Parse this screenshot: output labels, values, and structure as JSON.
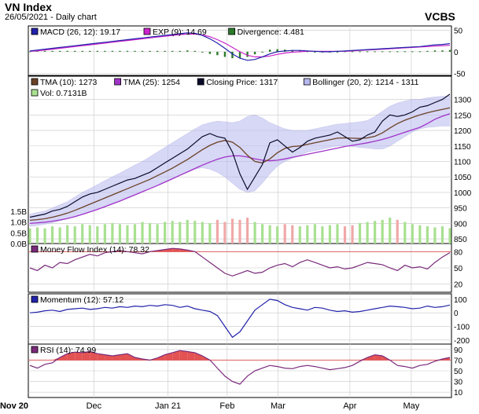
{
  "header": {
    "title": "VN Index",
    "subtitle": "26/05/2021 - Daily chart",
    "brand": "VCBS"
  },
  "colors": {
    "panel_bg": "#ffffff",
    "plot_bg": "#ffffff",
    "grid": "#c8c8c8",
    "macd": "#2222aa",
    "exp": "#cc22cc",
    "divergence": "#2a7a2a",
    "tma10": "#6b4226",
    "tma25": "#a033c8",
    "close": "#0a0a2a",
    "bollinger": "#b8b8f0",
    "vol_up": "#a8e090",
    "vol_down": "#f0a8a8",
    "mfi": "#7a2a7a",
    "momentum": "#2222aa",
    "rsi": "#7a2a7a",
    "overbought_fill": "#e04040",
    "threshold": "#e06060"
  },
  "x_axis": {
    "labels": [
      "Nov 20",
      "Dec",
      "Jan 21",
      "Feb",
      "Mar",
      "Apr",
      "May"
    ]
  },
  "chart_data": [
    {
      "type": "line",
      "panel": "macd",
      "legend": [
        {
          "label": "MACD (26, 12): 19.17",
          "color": "#2222aa"
        },
        {
          "label": "EXP (9): 14.69",
          "color": "#cc22cc"
        },
        {
          "label": "Divergence: 4.481",
          "color": "#2a7a2a"
        }
      ],
      "yticks": [
        50,
        0,
        -50
      ],
      "ylim": [
        -55,
        60
      ],
      "series": [
        {
          "name": "MACD (26, 12)",
          "values": [
            2,
            4,
            6,
            8,
            10,
            12,
            14,
            16,
            18,
            20,
            22,
            24,
            26,
            28,
            30,
            32,
            34,
            36,
            38,
            40,
            42,
            44,
            43,
            38,
            30,
            20,
            8,
            -5,
            -15,
            -20,
            -18,
            -12,
            -5,
            0,
            2,
            3,
            3,
            2,
            1,
            0,
            0,
            1,
            2,
            3,
            4,
            5,
            6,
            7,
            8,
            9,
            10,
            11,
            12,
            14,
            16,
            17,
            19
          ]
        },
        {
          "name": "EXP (9)",
          "values": [
            1,
            2,
            4,
            6,
            8,
            10,
            12,
            14,
            16,
            18,
            20,
            22,
            24,
            26,
            28,
            30,
            32,
            34,
            36,
            38,
            40,
            41,
            41,
            39,
            35,
            28,
            20,
            10,
            0,
            -8,
            -12,
            -12,
            -10,
            -6,
            -3,
            -1,
            0,
            1,
            1,
            1,
            1,
            1,
            1,
            2,
            3,
            4,
            5,
            6,
            7,
            8,
            9,
            10,
            11,
            12,
            13,
            14,
            15
          ]
        },
        {
          "name": "Divergence",
          "values": [
            1,
            2,
            2,
            2,
            2,
            2,
            2,
            2,
            2,
            2,
            2,
            2,
            2,
            2,
            2,
            2,
            2,
            2,
            2,
            2,
            2,
            3,
            2,
            -1,
            -5,
            -8,
            -12,
            -15,
            -15,
            -12,
            -6,
            0,
            5,
            6,
            5,
            4,
            3,
            1,
            0,
            -1,
            -1,
            0,
            1,
            1,
            1,
            1,
            1,
            1,
            1,
            1,
            1,
            1,
            1,
            2,
            3,
            3,
            4
          ]
        }
      ]
    },
    {
      "type": "line",
      "panel": "price",
      "legend": [
        {
          "label": "TMA (10): 1273",
          "color": "#6b4226"
        },
        {
          "label": "TMA (25): 1254",
          "color": "#a033c8"
        },
        {
          "label": "Closing Price: 1317",
          "color": "#0a0a2a"
        },
        {
          "label": "Bollinger (20, 2): 1214 - 1311",
          "color": "#b8b8f0"
        },
        {
          "label": "Vol: 0.7131B",
          "color": "#a8e090"
        }
      ],
      "yticks": [
        1300,
        1250,
        1200,
        1150,
        1100,
        1050,
        1000,
        950,
        900,
        850
      ],
      "ylim": [
        835,
        1375
      ],
      "vol_ticks": [
        "1.5B",
        "1.0B",
        "0.5B",
        "0.0B"
      ],
      "vol_ylim": [
        0,
        1.75
      ],
      "series": [
        {
          "name": "Closing Price",
          "values": [
            920,
            925,
            930,
            940,
            945,
            955,
            970,
            985,
            995,
            1000,
            1010,
            1020,
            1030,
            1040,
            1045,
            1055,
            1065,
            1080,
            1095,
            1110,
            1125,
            1140,
            1160,
            1180,
            1190,
            1180,
            1175,
            1130,
            1060,
            1010,
            1050,
            1090,
            1160,
            1170,
            1150,
            1130,
            1145,
            1165,
            1175,
            1180,
            1185,
            1195,
            1180,
            1165,
            1170,
            1185,
            1195,
            1230,
            1250,
            1245,
            1250,
            1260,
            1275,
            1280,
            1290,
            1300,
            1317
          ]
        },
        {
          "name": "TMA (10)",
          "values": [
            910,
            912,
            915,
            920,
            926,
            933,
            942,
            952,
            962,
            972,
            982,
            992,
            1002,
            1012,
            1022,
            1032,
            1042,
            1054,
            1066,
            1078,
            1092,
            1106,
            1122,
            1138,
            1152,
            1162,
            1168,
            1162,
            1145,
            1120,
            1100,
            1095,
            1108,
            1128,
            1142,
            1148,
            1150,
            1155,
            1160,
            1165,
            1170,
            1175,
            1176,
            1175,
            1174,
            1176,
            1181,
            1192,
            1208,
            1222,
            1233,
            1242,
            1250,
            1257,
            1263,
            1268,
            1273
          ]
        },
        {
          "name": "TMA (25)",
          "values": [
            900,
            902,
            904,
            907,
            911,
            916,
            922,
            929,
            937,
            945,
            954,
            963,
            972,
            982,
            992,
            1002,
            1012,
            1022,
            1033,
            1044,
            1055,
            1066,
            1077,
            1088,
            1098,
            1107,
            1114,
            1118,
            1118,
            1114,
            1108,
            1104,
            1102,
            1104,
            1108,
            1113,
            1118,
            1123,
            1128,
            1133,
            1138,
            1143,
            1148,
            1152,
            1156,
            1160,
            1165,
            1171,
            1178,
            1186,
            1194,
            1202,
            1210,
            1222,
            1236,
            1246,
            1254
          ]
        },
        {
          "name": "Bollinger upper",
          "values": [
            930,
            935,
            940,
            950,
            960,
            970,
            985,
            1000,
            1012,
            1025,
            1038,
            1050,
            1062,
            1075,
            1088,
            1100,
            1115,
            1130,
            1145,
            1160,
            1175,
            1190,
            1205,
            1218,
            1225,
            1230,
            1228,
            1225,
            1230,
            1245,
            1250,
            1240,
            1225,
            1215,
            1205,
            1200,
            1200,
            1200,
            1205,
            1210,
            1215,
            1220,
            1222,
            1225,
            1228,
            1232,
            1245,
            1262,
            1278,
            1288,
            1295,
            1300,
            1300,
            1305,
            1308,
            1310,
            1311
          ]
        },
        {
          "name": "Bollinger lower",
          "values": [
            890,
            893,
            897,
            902,
            908,
            915,
            922,
            930,
            938,
            946,
            955,
            965,
            975,
            985,
            995,
            1005,
            1015,
            1025,
            1035,
            1045,
            1055,
            1065,
            1075,
            1080,
            1075,
            1065,
            1050,
            1030,
            1010,
            1000,
            1005,
            1030,
            1060,
            1085,
            1100,
            1110,
            1120,
            1130,
            1135,
            1140,
            1145,
            1150,
            1150,
            1148,
            1145,
            1143,
            1140,
            1140,
            1150,
            1165,
            1180,
            1195,
            1205,
            1210,
            1212,
            1214,
            1214
          ]
        },
        {
          "name": "Vol",
          "values": [
            0.7,
            0.75,
            0.7,
            0.8,
            0.75,
            0.85,
            0.8,
            0.9,
            0.85,
            0.8,
            0.9,
            0.95,
            0.9,
            0.85,
            0.9,
            1.0,
            0.95,
            0.9,
            1.0,
            1.05,
            1.0,
            1.1,
            1.05,
            1.0,
            0.95,
            1.1,
            1.0,
            1.15,
            1.1,
            1.2,
            1.0,
            0.9,
            0.85,
            0.8,
            0.9,
            0.85,
            0.8,
            0.85,
            0.9,
            0.8,
            0.85,
            0.9,
            0.8,
            0.85,
            0.95,
            1.0,
            1.05,
            1.1,
            1.2,
            1.1,
            1.0,
            0.9,
            0.85,
            0.8,
            0.75,
            0.8,
            0.7131
          ]
        }
      ]
    },
    {
      "type": "line",
      "panel": "mfi",
      "legend": [
        {
          "label": "Money Flow Index (14): 78.32",
          "color": "#7a2a7a"
        }
      ],
      "yticks": [
        80,
        50,
        20
      ],
      "ylim": [
        5,
        95
      ],
      "threshold": 80,
      "series": [
        {
          "name": "Money Flow Index (14)",
          "values": [
            50,
            45,
            55,
            50,
            60,
            58,
            65,
            70,
            75,
            72,
            78,
            80,
            82,
            80,
            78,
            76,
            80,
            82,
            84,
            86,
            85,
            83,
            80,
            70,
            60,
            50,
            40,
            35,
            40,
            45,
            40,
            42,
            50,
            55,
            58,
            52,
            60,
            65,
            60,
            55,
            50,
            52,
            48,
            50,
            55,
            60,
            58,
            56,
            50,
            45,
            55,
            50,
            52,
            48,
            60,
            70,
            78.32
          ]
        }
      ]
    },
    {
      "type": "line",
      "panel": "momentum",
      "legend": [
        {
          "label": "Momentum (12): 57.12",
          "color": "#2222aa"
        }
      ],
      "yticks": [
        100,
        0,
        -100,
        -200
      ],
      "ylim": [
        -230,
        140
      ],
      "series": [
        {
          "name": "Momentum (12)",
          "values": [
            0,
            5,
            15,
            20,
            10,
            25,
            30,
            35,
            25,
            30,
            40,
            35,
            45,
            40,
            50,
            45,
            55,
            50,
            60,
            55,
            40,
            50,
            30,
            20,
            10,
            -20,
            -100,
            -180,
            -140,
            -60,
            20,
            60,
            100,
            90,
            60,
            40,
            30,
            20,
            40,
            35,
            20,
            10,
            15,
            5,
            10,
            20,
            30,
            40,
            50,
            45,
            40,
            30,
            35,
            50,
            40,
            45,
            57.12
          ]
        }
      ]
    },
    {
      "type": "line",
      "panel": "rsi",
      "legend": [
        {
          "label": "RSI (14): 74.99",
          "color": "#7a2a7a"
        }
      ],
      "yticks": [
        90,
        70,
        50,
        30,
        10
      ],
      "ylim": [
        0,
        100
      ],
      "threshold": 70,
      "series": [
        {
          "name": "RSI (14)",
          "values": [
            60,
            55,
            62,
            65,
            75,
            82,
            85,
            84,
            86,
            82,
            80,
            78,
            80,
            82,
            75,
            72,
            70,
            74,
            80,
            84,
            88,
            86,
            84,
            78,
            70,
            55,
            40,
            30,
            25,
            40,
            50,
            55,
            60,
            58,
            55,
            54,
            58,
            60,
            58,
            55,
            52,
            54,
            56,
            60,
            68,
            75,
            80,
            78,
            70,
            60,
            58,
            55,
            60,
            62,
            68,
            72,
            74.99
          ]
        }
      ]
    }
  ]
}
